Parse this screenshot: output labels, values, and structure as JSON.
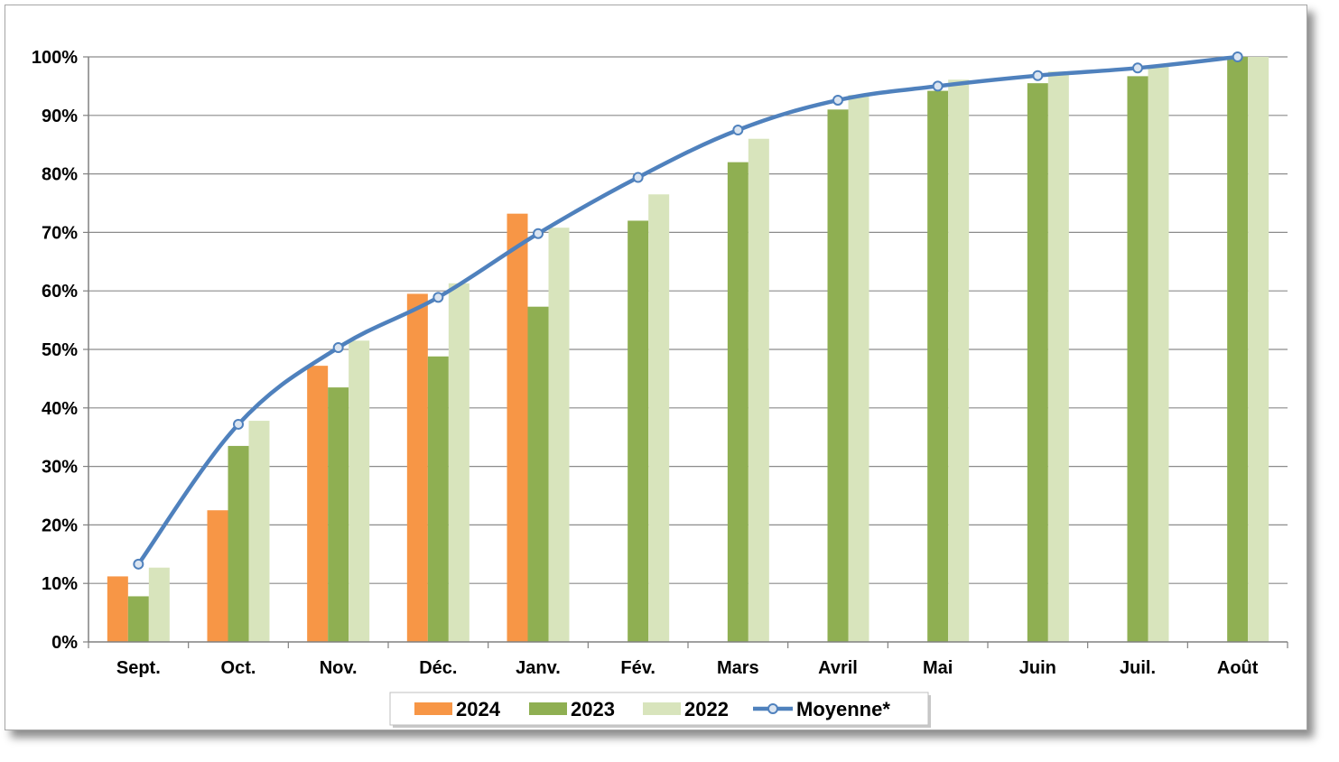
{
  "chart_data": {
    "type": "bar",
    "categories": [
      "Sept.",
      "Oct.",
      "Nov.",
      "Déc.",
      "Janv.",
      "Fév.",
      "Mars",
      "Avril",
      "Mai",
      "Juin",
      "Juil.",
      "Août"
    ],
    "series": [
      {
        "name": "2024",
        "type": "bar",
        "color": "#f79646",
        "values": [
          11.2,
          22.5,
          47.2,
          59.5,
          73.2,
          null,
          null,
          null,
          null,
          null,
          null,
          null
        ]
      },
      {
        "name": "2023",
        "type": "bar",
        "color": "#8faf52",
        "values": [
          7.8,
          33.5,
          43.5,
          48.8,
          57.3,
          72.0,
          82.0,
          91.0,
          94.2,
          95.5,
          96.7,
          100.0
        ]
      },
      {
        "name": "2022",
        "type": "bar",
        "color": "#d8e4bc",
        "values": [
          12.7,
          37.8,
          51.5,
          61.3,
          70.8,
          76.5,
          86.0,
          93.5,
          96.1,
          97.5,
          98.5,
          100.0
        ]
      },
      {
        "name": "Moyenne*",
        "type": "line",
        "color": "#4f81bd",
        "values": [
          13.3,
          37.2,
          50.3,
          58.9,
          69.8,
          79.4,
          87.5,
          92.6,
          95.0,
          96.8,
          98.1,
          100.0
        ]
      }
    ],
    "ylim": [
      0,
      100
    ],
    "y_ticks": [
      "0%",
      "10%",
      "20%",
      "30%",
      "40%",
      "50%",
      "60%",
      "70%",
      "80%",
      "90%",
      "100%"
    ],
    "y_tick_values": [
      0,
      10,
      20,
      30,
      40,
      50,
      60,
      70,
      80,
      90,
      100
    ],
    "grid": true,
    "legend": "bottom",
    "title": "",
    "xlabel": "",
    "ylabel": ""
  }
}
